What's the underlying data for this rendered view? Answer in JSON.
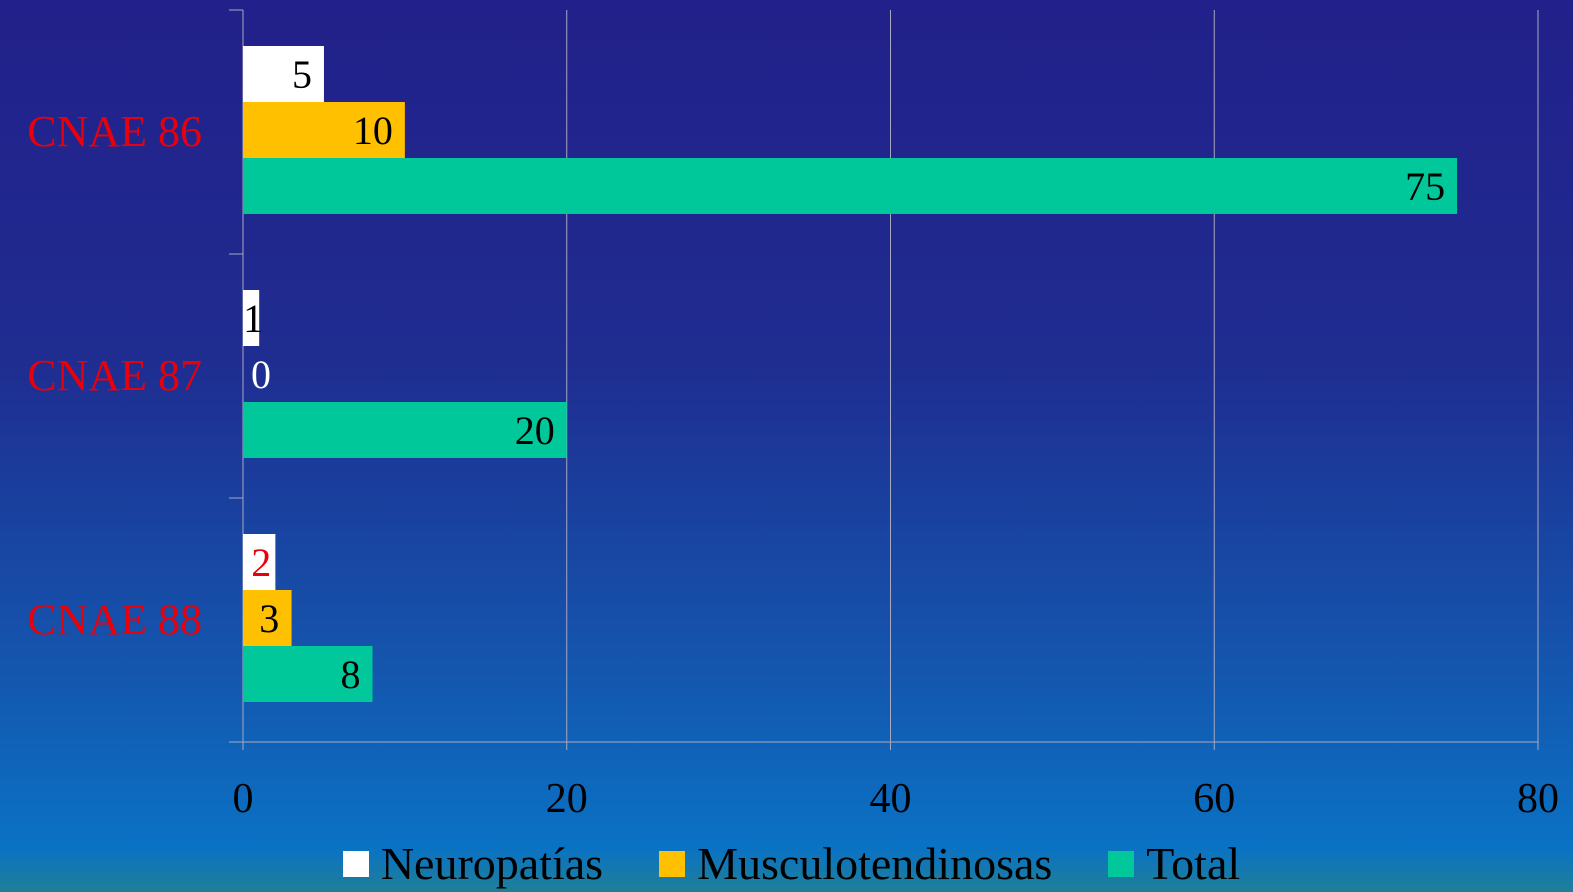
{
  "chart_data": {
    "type": "bar",
    "orientation": "horizontal",
    "categories": [
      "CNAE 86",
      "CNAE 87",
      "CNAE 88"
    ],
    "series": [
      {
        "name": "Neuropatías",
        "values": [
          5,
          1,
          2
        ],
        "color": "#ffffff"
      },
      {
        "name": "Musculotendinosas",
        "values": [
          10,
          0,
          3
        ],
        "color": "#ffc000"
      },
      {
        "name": "Total",
        "values": [
          75,
          20,
          8
        ],
        "color": "#00c89a"
      }
    ],
    "xlim": [
      0,
      80
    ],
    "xticks": [
      "0",
      "20",
      "40",
      "60",
      "80"
    ],
    "grid": true,
    "legend_position": "bottom",
    "category_label_color": "#e8000b",
    "data_labels": [
      {
        "text": "5",
        "color": "#000000"
      },
      {
        "text": "10",
        "color": "#000000"
      },
      {
        "text": "75",
        "color": "#000000"
      },
      {
        "text": "1",
        "color": "#000000"
      },
      {
        "text": "0",
        "color": "#ffffff"
      },
      {
        "text": "20",
        "color": "#000000"
      },
      {
        "text": "2",
        "color": "#e8000b"
      },
      {
        "text": "3",
        "color": "#000000"
      },
      {
        "text": "8",
        "color": "#000000"
      }
    ]
  }
}
